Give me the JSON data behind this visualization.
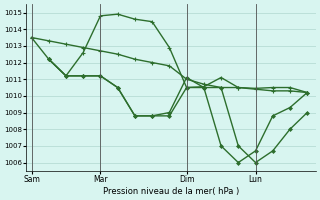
{
  "bg_color": "#d8f5f0",
  "grid_color": "#b0d8d0",
  "line_color": "#2d6e2d",
  "xlabel": "Pression niveau de la mer( hPa )",
  "ylim": [
    1005.5,
    1015.5
  ],
  "yticks": [
    1006,
    1007,
    1008,
    1009,
    1010,
    1011,
    1012,
    1013,
    1014,
    1015
  ],
  "xtick_labels": [
    "Sam",
    "Mar",
    "Dim",
    "Lun"
  ],
  "xtick_positions": [
    0,
    4,
    9,
    13
  ],
  "vlines": [
    0,
    4,
    9,
    13
  ],
  "line1_x": [
    0,
    1,
    2,
    3,
    4,
    5,
    6,
    7,
    8,
    9,
    10,
    11,
    12,
    13,
    14,
    15,
    16
  ],
  "line1_y": [
    1013.5,
    1013.3,
    1013.1,
    1012.9,
    1012.7,
    1012.5,
    1012.2,
    1012.0,
    1011.8,
    1011.0,
    1010.7,
    1010.5,
    1010.5,
    1010.4,
    1010.3,
    1010.3,
    1010.2
  ],
  "line2_x": [
    0,
    1,
    2,
    3,
    4,
    5,
    6,
    7,
    8,
    9,
    10,
    11,
    12,
    13,
    14,
    15,
    16
  ],
  "line2_y": [
    1013.5,
    1012.2,
    1011.2,
    1012.6,
    1014.8,
    1014.9,
    1014.6,
    1014.45,
    1012.9,
    1010.5,
    1010.55,
    1011.1,
    1010.5,
    1010.45,
    1010.5,
    1010.5,
    1010.2
  ],
  "line3_x": [
    1,
    2,
    3,
    4,
    5,
    6,
    7,
    8,
    9,
    10,
    11,
    12,
    13,
    14,
    15,
    16
  ],
  "line3_y": [
    1012.2,
    1011.2,
    1011.2,
    1011.2,
    1010.5,
    1008.8,
    1008.8,
    1009.0,
    1011.1,
    1010.5,
    1010.5,
    1007.0,
    1006.0,
    1006.7,
    1008.0,
    1009.0
  ],
  "line4_x": [
    1,
    2,
    3,
    4,
    5,
    6,
    7,
    8,
    9,
    10,
    11,
    12,
    13,
    14,
    15,
    16
  ],
  "line4_y": [
    1012.2,
    1011.2,
    1011.2,
    1011.2,
    1010.5,
    1008.8,
    1008.8,
    1008.8,
    1010.5,
    1010.5,
    1007.0,
    1006.0,
    1006.7,
    1008.8,
    1009.3,
    1010.2
  ]
}
